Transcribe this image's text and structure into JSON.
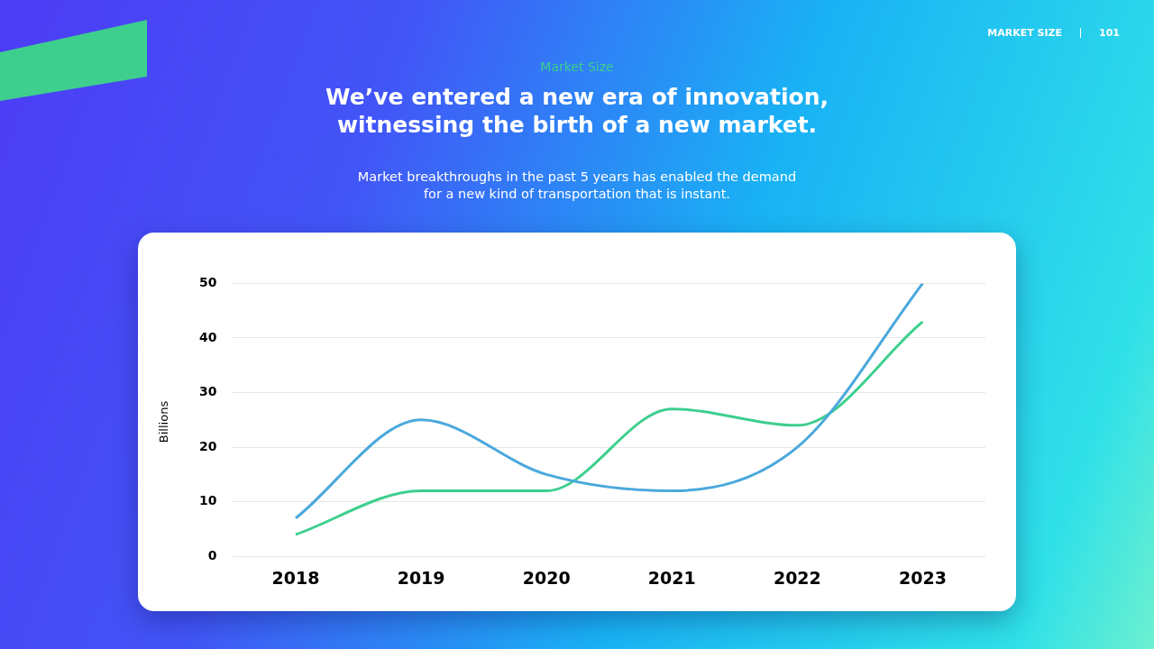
{
  "chart_data": {
    "type": "line",
    "title": "We’ve entered a new era of innovation, witnessing the birth of a new market.",
    "subtitle": "Market breakthroughs in the past 5 years has enabled the demand for a new kind of transportation that is instant.",
    "annotations": [
      "Market Size",
      "MARKET SIZE",
      "101"
    ],
    "categories": [
      "2018",
      "2019",
      "2020",
      "2021",
      "2022",
      "2023"
    ],
    "series": [
      {
        "color": "#4aa8dc",
        "values": [
          7,
          25,
          15,
          12,
          20,
          50
        ]
      },
      {
        "color": "#3ecf8e",
        "values": [
          4,
          12,
          12,
          27,
          24,
          43
        ]
      }
    ],
    "ylabel": "Billions",
    "ylim": [
      0,
      50
    ],
    "yticks": [
      0,
      10,
      20,
      30,
      40,
      50
    ],
    "grid": "y",
    "marker": "none",
    "line_style": "solid"
  }
}
